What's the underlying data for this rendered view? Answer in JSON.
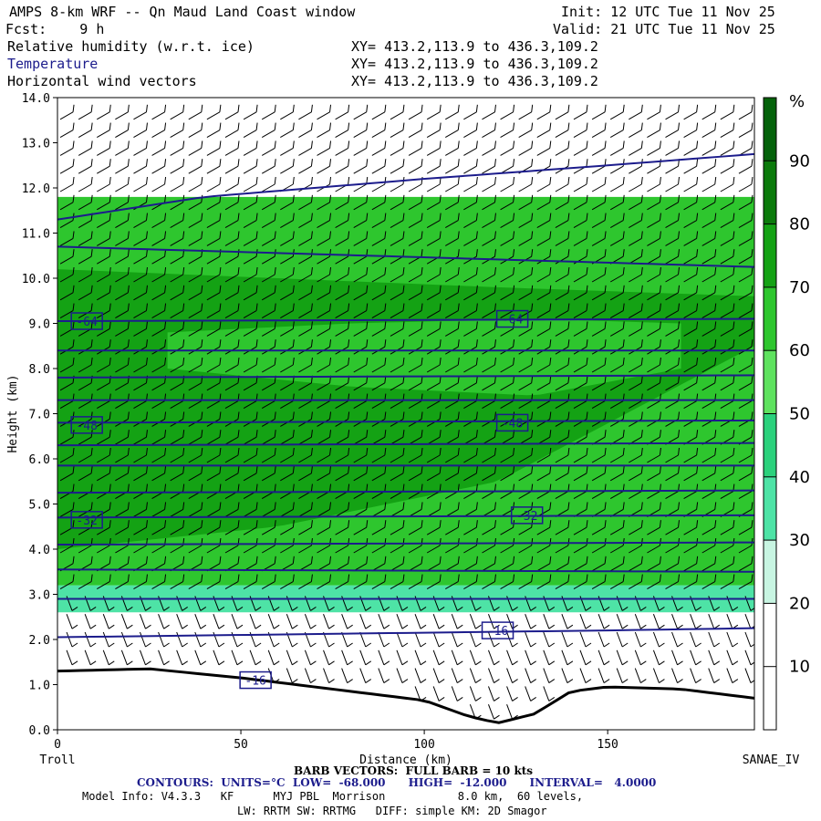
{
  "header": {
    "title": "AMPS 8-km WRF -- Qn Maud Land Coast window",
    "init": "Init: 12 UTC Tue 11 Nov 25",
    "fcst": "Fcst:    9 h",
    "valid": "Valid: 21 UTC Tue 11 Nov 25",
    "field1": "Relative humidity (w.r.t. ice)",
    "field2": "Temperature",
    "field3": "Horizontal wind vectors",
    "xy": "XY= 413.2,113.9 to 436.3,109.2"
  },
  "footer": {
    "barb": "BARB VECTORS:  FULL BARB = 10 kts",
    "contours": "CONTOURS:  UNITS=°C  LOW=  -68.000      HIGH=  -12.000      INTERVAL=   4.0000",
    "model1": "Model Info: V4.3.3   KF      MYJ PBL  Morrison           8.0 km,  60 levels,",
    "model2": "LW: RRTM SW: RRTMG   DIFF: simple KM: 2D Smagor"
  },
  "colors": {
    "rh_bins": [
      "#ffffff",
      "#ffffff",
      "#ffffff",
      "#c8f5e2",
      "#4ee3a6",
      "#2bd17c",
      "#5fe25f",
      "#2ec62e",
      "#14a214",
      "#0b7a0b",
      "#04620a"
    ],
    "temp_line": "#1c1c8c",
    "terrain": "#000000"
  },
  "chart_data": {
    "type": "vertical-cross-section",
    "xlabel": "Distance (km)",
    "ylabel": "Height (km)",
    "xlim": [
      0,
      190
    ],
    "ylim": [
      0,
      14
    ],
    "x_ticks": [
      0,
      50,
      100,
      150
    ],
    "y_ticks": [
      0,
      1,
      2,
      3,
      4,
      5,
      6,
      7,
      8,
      9,
      10,
      11,
      12,
      13,
      14
    ],
    "x_start_label": "Troll",
    "x_end_label": "SANAE_IV",
    "colorbar": {
      "unit": "%",
      "levels": [
        10,
        20,
        30,
        40,
        50,
        60,
        70,
        80,
        90
      ]
    },
    "terrain": {
      "x": [
        0,
        25,
        50,
        75,
        100,
        112,
        120,
        130,
        140,
        150,
        170,
        190
      ],
      "height": [
        1.3,
        1.35,
        1.15,
        0.9,
        0.65,
        0.3,
        0.15,
        0.35,
        0.85,
        0.95,
        0.9,
        0.7
      ]
    },
    "temperature_contours": [
      {
        "value": -16,
        "x": [
          0,
          50,
          100,
          150,
          190
        ],
        "height": [
          2.05,
          2.1,
          2.15,
          2.2,
          2.25
        ]
      },
      {
        "value": -20,
        "x": [
          0,
          190
        ],
        "height": [
          2.9,
          2.9
        ]
      },
      {
        "value": -24,
        "x": [
          0,
          190
        ],
        "height": [
          3.55,
          3.5
        ]
      },
      {
        "value": -28,
        "x": [
          0,
          190
        ],
        "height": [
          4.1,
          4.15
        ]
      },
      {
        "value": -32,
        "x": [
          0,
          190
        ],
        "height": [
          4.7,
          4.75
        ]
      },
      {
        "value": -36,
        "x": [
          0,
          190
        ],
        "height": [
          5.25,
          5.3
        ]
      },
      {
        "value": -40,
        "x": [
          0,
          190
        ],
        "height": [
          5.85,
          5.85
        ]
      },
      {
        "value": -44,
        "x": [
          0,
          190
        ],
        "height": [
          6.3,
          6.35
        ]
      },
      {
        "value": -48,
        "x": [
          0,
          190
        ],
        "height": [
          6.8,
          6.85
        ]
      },
      {
        "value": -52,
        "x": [
          0,
          190
        ],
        "height": [
          7.3,
          7.3
        ]
      },
      {
        "value": -56,
        "x": [
          0,
          190
        ],
        "height": [
          7.8,
          7.85
        ]
      },
      {
        "value": -60,
        "x": [
          0,
          190
        ],
        "height": [
          8.4,
          8.4
        ]
      },
      {
        "value": -64,
        "x": [
          0,
          190
        ],
        "height": [
          9.05,
          9.1
        ]
      },
      {
        "value": -68,
        "x": [
          0,
          190
        ],
        "height": [
          10.7,
          10.25
        ]
      },
      {
        "value": -64,
        "x": [
          0,
          40,
          100,
          150,
          190
        ],
        "height": [
          11.3,
          11.8,
          12.2,
          12.5,
          12.75
        ]
      }
    ],
    "contour_labels": [
      {
        "text": "-64",
        "x": 8,
        "height": 9.05
      },
      {
        "text": "-64",
        "x": 124,
        "height": 9.1
      },
      {
        "text": "-48",
        "x": 8,
        "height": 6.75
      },
      {
        "text": "-48",
        "x": 124,
        "height": 6.8
      },
      {
        "text": "-32",
        "x": 8,
        "height": 4.65
      },
      {
        "text": "-32",
        "x": 128,
        "height": 4.75
      },
      {
        "text": "-16",
        "x": 120,
        "height": 2.2
      },
      {
        "text": "-16",
        "x": 54,
        "height": 1.1
      }
    ],
    "rh_regions": [
      {
        "rh": 25,
        "x": [
          0,
          190
        ],
        "bottom": [
          1.4,
          1.4
        ],
        "top": [
          2.6,
          2.6
        ]
      },
      {
        "rh": 45,
        "x": [
          0,
          190
        ],
        "bottom": [
          2.6,
          2.6
        ],
        "top": [
          3.2,
          3.2
        ]
      },
      {
        "rh": 75,
        "x": [
          0,
          190
        ],
        "bottom": [
          3.2,
          3.2
        ],
        "top": [
          11.8,
          11.8
        ]
      },
      {
        "rh": 88,
        "x": [
          0,
          60,
          120,
          190
        ],
        "bottom": [
          4.0,
          4.5,
          5.5,
          8.5
        ],
        "top": [
          10.2,
          10.0,
          9.8,
          9.6
        ]
      },
      {
        "rh": 72,
        "x": [
          30,
          80,
          130,
          170
        ],
        "bottom": [
          8.0,
          7.6,
          7.4,
          8.0
        ],
        "top": [
          8.8,
          9.0,
          9.1,
          9.0
        ]
      }
    ],
    "wind_barbs": {
      "columns": 38,
      "levels_km": [
        0.4,
        0.8,
        1.2,
        1.6,
        2.0,
        2.4,
        2.8,
        3.2,
        3.6,
        4.0,
        4.4,
        4.8,
        5.2,
        5.6,
        6.0,
        6.4,
        6.8,
        7.2,
        7.6,
        8.0,
        8.4,
        8.8,
        9.2,
        9.6,
        10.0,
        10.4,
        10.8,
        11.2,
        11.6,
        12.0,
        12.4,
        12.8,
        13.2,
        13.6
      ]
    }
  }
}
